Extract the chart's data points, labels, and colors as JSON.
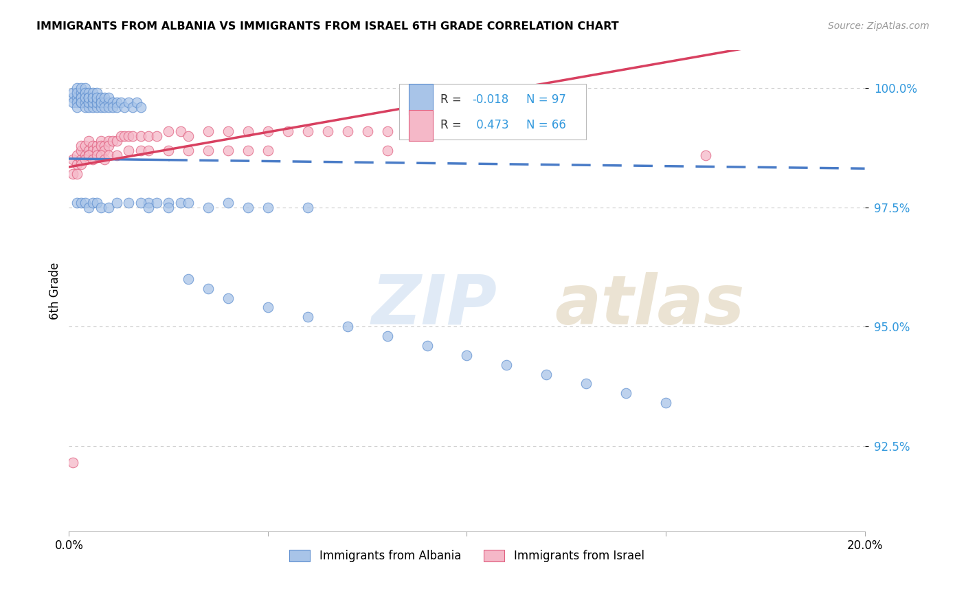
{
  "title": "IMMIGRANTS FROM ALBANIA VS IMMIGRANTS FROM ISRAEL 6TH GRADE CORRELATION CHART",
  "source": "Source: ZipAtlas.com",
  "ylabel": "6th Grade",
  "ytick_labels": [
    "92.5%",
    "95.0%",
    "97.5%",
    "100.0%"
  ],
  "ytick_values": [
    0.925,
    0.95,
    0.975,
    1.0
  ],
  "xlim": [
    0.0,
    0.2
  ],
  "ylim": [
    0.907,
    1.008
  ],
  "legend_r_albania": "-0.018",
  "legend_n_albania": "97",
  "legend_r_israel": "0.473",
  "legend_n_israel": "66",
  "color_albania_fill": "#a8c4e8",
  "color_albania_edge": "#6090d0",
  "color_israel_fill": "#f5b8c8",
  "color_israel_edge": "#e06080",
  "color_trendline_albania": "#4a7cc7",
  "color_trendline_israel": "#d84060",
  "albania_x": [
    0.001,
    0.001,
    0.001,
    0.002,
    0.002,
    0.002,
    0.002,
    0.002,
    0.003,
    0.003,
    0.003,
    0.003,
    0.003,
    0.003,
    0.004,
    0.004,
    0.004,
    0.004,
    0.004,
    0.004,
    0.004,
    0.005,
    0.005,
    0.005,
    0.005,
    0.005,
    0.005,
    0.005,
    0.006,
    0.006,
    0.006,
    0.006,
    0.006,
    0.006,
    0.007,
    0.007,
    0.007,
    0.007,
    0.007,
    0.007,
    0.008,
    0.008,
    0.008,
    0.008,
    0.009,
    0.009,
    0.009,
    0.01,
    0.01,
    0.01,
    0.011,
    0.011,
    0.012,
    0.012,
    0.013,
    0.014,
    0.015,
    0.016,
    0.017,
    0.018,
    0.02,
    0.022,
    0.025,
    0.028,
    0.03,
    0.035,
    0.04,
    0.045,
    0.05,
    0.06,
    0.002,
    0.003,
    0.004,
    0.005,
    0.006,
    0.007,
    0.008,
    0.01,
    0.012,
    0.015,
    0.018,
    0.02,
    0.025,
    0.03,
    0.035,
    0.04,
    0.05,
    0.06,
    0.07,
    0.08,
    0.09,
    0.1,
    0.11,
    0.12,
    0.13,
    0.14,
    0.15
  ],
  "albania_y": [
    0.998,
    0.997,
    0.999,
    0.998,
    0.997,
    0.996,
    1.0,
    0.999,
    0.999,
    0.998,
    0.997,
    1.0,
    0.998,
    0.997,
    0.999,
    0.998,
    0.997,
    0.996,
    1.0,
    0.999,
    0.998,
    0.998,
    0.997,
    0.996,
    0.999,
    0.998,
    0.997,
    0.998,
    0.997,
    0.996,
    0.998,
    0.999,
    0.997,
    0.998,
    0.997,
    0.996,
    0.998,
    0.999,
    0.997,
    0.998,
    0.997,
    0.996,
    0.998,
    0.997,
    0.997,
    0.996,
    0.998,
    0.997,
    0.996,
    0.998,
    0.997,
    0.996,
    0.997,
    0.996,
    0.997,
    0.996,
    0.997,
    0.996,
    0.997,
    0.996,
    0.976,
    0.976,
    0.976,
    0.976,
    0.976,
    0.975,
    0.976,
    0.975,
    0.975,
    0.975,
    0.976,
    0.976,
    0.976,
    0.975,
    0.976,
    0.976,
    0.975,
    0.975,
    0.976,
    0.976,
    0.976,
    0.975,
    0.975,
    0.96,
    0.958,
    0.956,
    0.954,
    0.952,
    0.95,
    0.948,
    0.946,
    0.944,
    0.942,
    0.94,
    0.938,
    0.936,
    0.934
  ],
  "israel_x": [
    0.001,
    0.001,
    0.002,
    0.002,
    0.003,
    0.003,
    0.003,
    0.004,
    0.004,
    0.005,
    0.005,
    0.005,
    0.006,
    0.006,
    0.007,
    0.007,
    0.008,
    0.008,
    0.009,
    0.009,
    0.01,
    0.01,
    0.011,
    0.012,
    0.013,
    0.014,
    0.015,
    0.016,
    0.018,
    0.02,
    0.022,
    0.025,
    0.028,
    0.03,
    0.035,
    0.04,
    0.045,
    0.05,
    0.055,
    0.06,
    0.065,
    0.07,
    0.075,
    0.08,
    0.002,
    0.003,
    0.004,
    0.005,
    0.006,
    0.007,
    0.008,
    0.009,
    0.01,
    0.012,
    0.015,
    0.018,
    0.02,
    0.025,
    0.03,
    0.035,
    0.04,
    0.045,
    0.05,
    0.08,
    0.16,
    0.001
  ],
  "israel_y": [
    0.985,
    0.982,
    0.984,
    0.986,
    0.985,
    0.987,
    0.988,
    0.986,
    0.988,
    0.987,
    0.989,
    0.986,
    0.988,
    0.987,
    0.988,
    0.987,
    0.989,
    0.988,
    0.988,
    0.987,
    0.989,
    0.988,
    0.989,
    0.989,
    0.99,
    0.99,
    0.99,
    0.99,
    0.99,
    0.99,
    0.99,
    0.991,
    0.991,
    0.99,
    0.991,
    0.991,
    0.991,
    0.991,
    0.991,
    0.991,
    0.991,
    0.991,
    0.991,
    0.991,
    0.982,
    0.984,
    0.985,
    0.986,
    0.985,
    0.986,
    0.986,
    0.985,
    0.986,
    0.986,
    0.987,
    0.987,
    0.987,
    0.987,
    0.987,
    0.987,
    0.987,
    0.987,
    0.987,
    0.987,
    0.986,
    0.9215
  ]
}
